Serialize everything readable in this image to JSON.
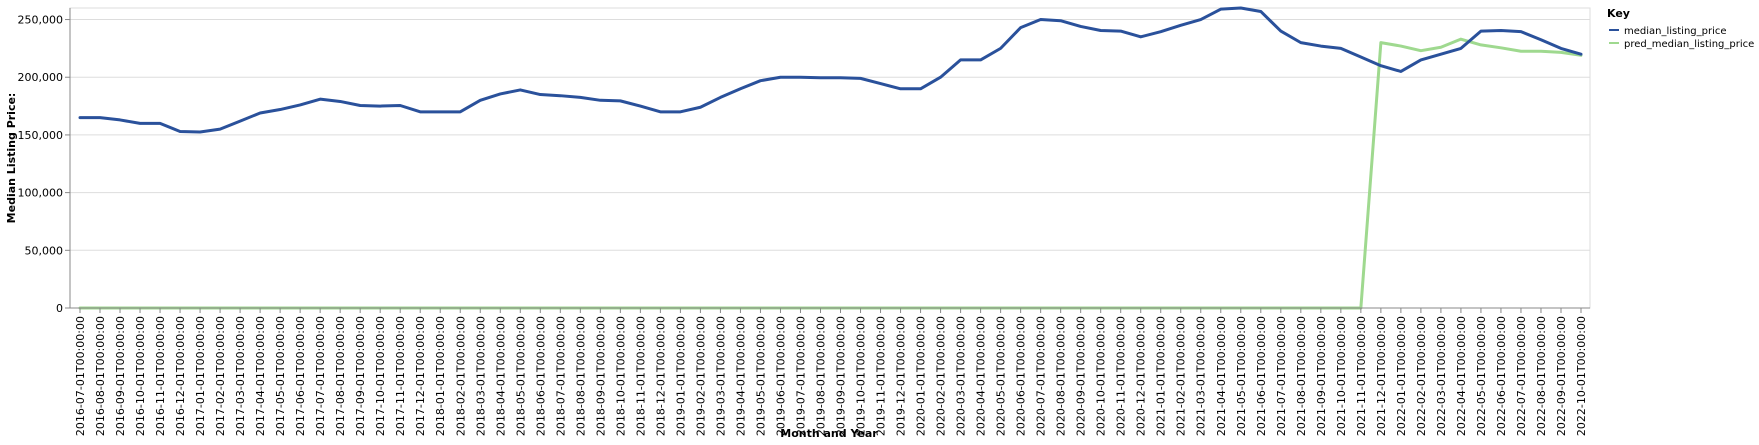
{
  "chart_data": {
    "type": "line",
    "xlabel": "Month and Year",
    "ylabel": "Median Listing Price:",
    "ylim": [
      0,
      260000
    ],
    "y_ticks": [
      0,
      50000,
      100000,
      150000,
      200000,
      250000
    ],
    "y_tick_labels": [
      "0",
      "50,000",
      "100,000",
      "150,000",
      "200,000",
      "250,000"
    ],
    "grid": true,
    "legend": {
      "title": "Key",
      "placement": "top-right"
    },
    "x": [
      "2016-07-01T00:00:00",
      "2016-08-01T00:00:00",
      "2016-09-01T00:00:00",
      "2016-10-01T00:00:00",
      "2016-11-01T00:00:00",
      "2016-12-01T00:00:00",
      "2017-01-01T00:00:00",
      "2017-02-01T00:00:00",
      "2017-03-01T00:00:00",
      "2017-04-01T00:00:00",
      "2017-05-01T00:00:00",
      "2017-06-01T00:00:00",
      "2017-07-01T00:00:00",
      "2017-08-01T00:00:00",
      "2017-09-01T00:00:00",
      "2017-10-01T00:00:00",
      "2017-11-01T00:00:00",
      "2017-12-01T00:00:00",
      "2018-01-01T00:00:00",
      "2018-02-01T00:00:00",
      "2018-03-01T00:00:00",
      "2018-04-01T00:00:00",
      "2018-05-01T00:00:00",
      "2018-06-01T00:00:00",
      "2018-07-01T00:00:00",
      "2018-08-01T00:00:00",
      "2018-09-01T00:00:00",
      "2018-10-01T00:00:00",
      "2018-11-01T00:00:00",
      "2018-12-01T00:00:00",
      "2019-01-01T00:00:00",
      "2019-02-01T00:00:00",
      "2019-03-01T00:00:00",
      "2019-04-01T00:00:00",
      "2019-05-01T00:00:00",
      "2019-06-01T00:00:00",
      "2019-07-01T00:00:00",
      "2019-08-01T00:00:00",
      "2019-09-01T00:00:00",
      "2019-10-01T00:00:00",
      "2019-11-01T00:00:00",
      "2019-12-01T00:00:00",
      "2020-01-01T00:00:00",
      "2020-02-01T00:00:00",
      "2020-03-01T00:00:00",
      "2020-04-01T00:00:00",
      "2020-05-01T00:00:00",
      "2020-06-01T00:00:00",
      "2020-07-01T00:00:00",
      "2020-08-01T00:00:00",
      "2020-09-01T00:00:00",
      "2020-10-01T00:00:00",
      "2020-11-01T00:00:00",
      "2020-12-01T00:00:00",
      "2021-01-01T00:00:00",
      "2021-02-01T00:00:00",
      "2021-03-01T00:00:00",
      "2021-04-01T00:00:00",
      "2021-05-01T00:00:00",
      "2021-06-01T00:00:00",
      "2021-07-01T00:00:00",
      "2021-08-01T00:00:00",
      "2021-09-01T00:00:00",
      "2021-10-01T00:00:00",
      "2021-11-01T00:00:00",
      "2021-12-01T00:00:00",
      "2022-01-01T00:00:00",
      "2022-02-01T00:00:00",
      "2022-03-01T00:00:00",
      "2022-04-01T00:00:00",
      "2022-05-01T00:00:00",
      "2022-06-01T00:00:00",
      "2022-07-01T00:00:00",
      "2022-08-01T00:00:00",
      "2022-09-01T00:00:00",
      "2022-10-01T00:00:00"
    ],
    "series": [
      {
        "name": "median_listing_price",
        "color": "#2a519b",
        "values": [
          165000,
          165000,
          163000,
          160000,
          160000,
          153000,
          152500,
          155000,
          162000,
          169000,
          172000,
          176000,
          181000,
          179000,
          175500,
          175000,
          175500,
          170000,
          170000,
          170000,
          180000,
          185500,
          189000,
          185000,
          184000,
          182500,
          180000,
          179500,
          175000,
          170000,
          170000,
          174000,
          182500,
          190000,
          197000,
          200000,
          200000,
          199500,
          199500,
          199000,
          194500,
          190000,
          190000,
          200000,
          215000,
          215000,
          225000,
          243000,
          250000,
          249000,
          244000,
          240500,
          240000,
          235000,
          239500,
          245000,
          250000,
          259000,
          260000,
          257000,
          240000,
          230000,
          227000,
          225000,
          217500,
          210000,
          205000,
          215000,
          220000,
          225000,
          240000,
          240500,
          239500,
          232500,
          225000,
          220000
        ]
      },
      {
        "name": "pred_median_listing_price",
        "color": "#9fd98f",
        "values": [
          0,
          0,
          0,
          0,
          0,
          0,
          0,
          0,
          0,
          0,
          0,
          0,
          0,
          0,
          0,
          0,
          0,
          0,
          0,
          0,
          0,
          0,
          0,
          0,
          0,
          0,
          0,
          0,
          0,
          0,
          0,
          0,
          0,
          0,
          0,
          0,
          0,
          0,
          0,
          0,
          0,
          0,
          0,
          0,
          0,
          0,
          0,
          0,
          0,
          0,
          0,
          0,
          0,
          0,
          0,
          0,
          0,
          0,
          0,
          0,
          0,
          0,
          0,
          0,
          0,
          230000,
          227000,
          223000,
          226000,
          233000,
          228000,
          225500,
          222500,
          222500,
          221500,
          219000
        ]
      }
    ]
  }
}
